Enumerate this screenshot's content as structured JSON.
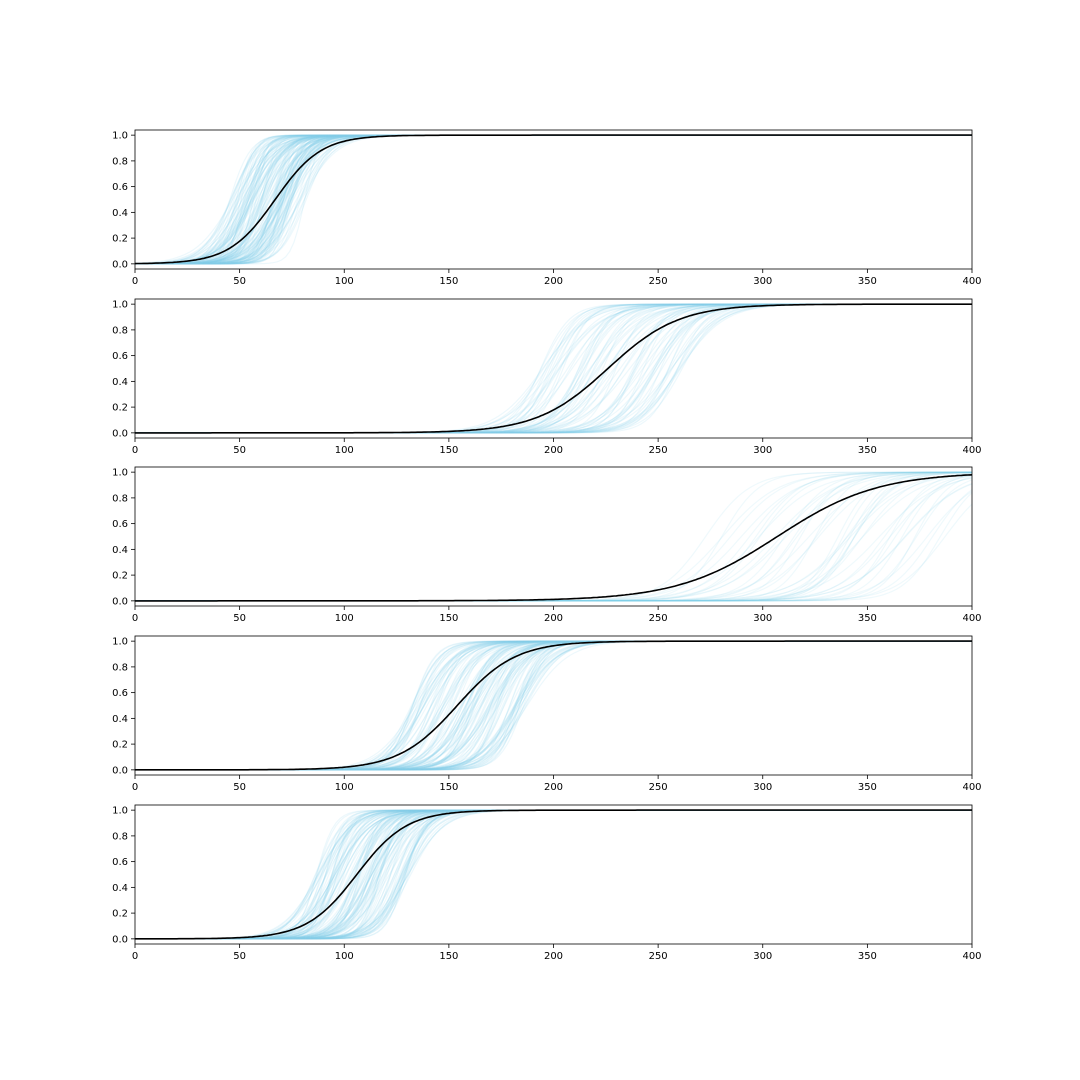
{
  "chart_data": [
    {
      "type": "line",
      "title": "",
      "xlabel": "",
      "ylabel": "",
      "xlim": [
        0,
        400
      ],
      "ylim": [
        -0.04,
        1.04
      ],
      "xticks": [
        0,
        50,
        100,
        150,
        200,
        250,
        300,
        350,
        400
      ],
      "yticks": [
        0.0,
        0.2,
        0.4,
        0.6,
        0.8,
        1.0
      ],
      "xtick_labels": [
        "0",
        "50",
        "100",
        "150",
        "200",
        "250",
        "300",
        "350",
        "400"
      ],
      "ytick_labels": [
        "0.0",
        "0.2",
        "0.4",
        "0.6",
        "0.8",
        "1.0"
      ],
      "grid": false,
      "sample_curves": {
        "count": 150,
        "model": "logistic",
        "midpoint_range": [
          45,
          82
        ],
        "width_range": [
          3,
          9
        ],
        "color": "#87ceeb",
        "opacity": 0.15
      },
      "mean_curve": {
        "model": "logistic",
        "midpoint": 67,
        "width": 11,
        "color": "#000000"
      }
    },
    {
      "type": "line",
      "title": "",
      "xlabel": "",
      "ylabel": "",
      "xlim": [
        0,
        400
      ],
      "ylim": [
        -0.04,
        1.04
      ],
      "xticks": [
        0,
        50,
        100,
        150,
        200,
        250,
        300,
        350,
        400
      ],
      "yticks": [
        0.0,
        0.2,
        0.4,
        0.6,
        0.8,
        1.0
      ],
      "xtick_labels": [
        "0",
        "50",
        "100",
        "150",
        "200",
        "250",
        "300",
        "350",
        "400"
      ],
      "ytick_labels": [
        "0.0",
        "0.2",
        "0.4",
        "0.6",
        "0.8",
        "1.0"
      ],
      "grid": false,
      "sample_curves": {
        "count": 80,
        "model": "logistic",
        "midpoint_range": [
          193,
          262
        ],
        "width_range": [
          6,
          12
        ],
        "color": "#87ceeb",
        "opacity": 0.15
      },
      "mean_curve": {
        "model": "logistic",
        "midpoint": 226,
        "width": 17,
        "color": "#000000"
      }
    },
    {
      "type": "line",
      "title": "",
      "xlabel": "",
      "ylabel": "",
      "xlim": [
        0,
        400
      ],
      "ylim": [
        -0.04,
        1.04
      ],
      "xticks": [
        0,
        50,
        100,
        150,
        200,
        250,
        300,
        350,
        400
      ],
      "yticks": [
        0.0,
        0.2,
        0.4,
        0.6,
        0.8,
        1.0
      ],
      "xtick_labels": [
        "0",
        "50",
        "100",
        "150",
        "200",
        "250",
        "300",
        "350",
        "400"
      ],
      "ytick_labels": [
        "0.0",
        "0.2",
        "0.4",
        "0.6",
        "0.8",
        "1.0"
      ],
      "grid": false,
      "sample_curves": {
        "count": 45,
        "model": "logistic",
        "midpoint_range": [
          272,
          392
        ],
        "width_range": [
          8,
          15
        ],
        "color": "#87ceeb",
        "opacity": 0.13
      },
      "mean_curve": {
        "model": "logistic",
        "midpoint": 307,
        "width": 24,
        "color": "#000000"
      }
    },
    {
      "type": "line",
      "title": "",
      "xlabel": "",
      "ylabel": "",
      "xlim": [
        0,
        400
      ],
      "ylim": [
        -0.04,
        1.04
      ],
      "xticks": [
        0,
        50,
        100,
        150,
        200,
        250,
        300,
        350,
        400
      ],
      "yticks": [
        0.0,
        0.2,
        0.4,
        0.6,
        0.8,
        1.0
      ],
      "xtick_labels": [
        "0",
        "50",
        "100",
        "150",
        "200",
        "250",
        "300",
        "350",
        "400"
      ],
      "ytick_labels": [
        "0.0",
        "0.2",
        "0.4",
        "0.6",
        "0.8",
        "1.0"
      ],
      "grid": false,
      "sample_curves": {
        "count": 130,
        "model": "logistic",
        "midpoint_range": [
          132,
          188
        ],
        "width_range": [
          5,
          10
        ],
        "color": "#87ceeb",
        "opacity": 0.15
      },
      "mean_curve": {
        "model": "logistic",
        "midpoint": 154,
        "width": 14,
        "color": "#000000"
      }
    },
    {
      "type": "line",
      "title": "",
      "xlabel": "",
      "ylabel": "",
      "xlim": [
        0,
        400
      ],
      "ylim": [
        -0.04,
        1.04
      ],
      "xticks": [
        0,
        50,
        100,
        150,
        200,
        250,
        300,
        350,
        400
      ],
      "yticks": [
        0.0,
        0.2,
        0.4,
        0.6,
        0.8,
        1.0
      ],
      "xtick_labels": [
        "0",
        "50",
        "100",
        "150",
        "200",
        "250",
        "300",
        "350",
        "400"
      ],
      "ytick_labels": [
        "0.0",
        "0.2",
        "0.4",
        "0.6",
        "0.8",
        "1.0"
      ],
      "grid": false,
      "sample_curves": {
        "count": 140,
        "model": "logistic",
        "midpoint_range": [
          86,
          132
        ],
        "width_range": [
          4,
          9
        ],
        "color": "#87ceeb",
        "opacity": 0.15
      },
      "mean_curve": {
        "model": "logistic",
        "midpoint": 106,
        "width": 12,
        "color": "#000000"
      }
    }
  ]
}
